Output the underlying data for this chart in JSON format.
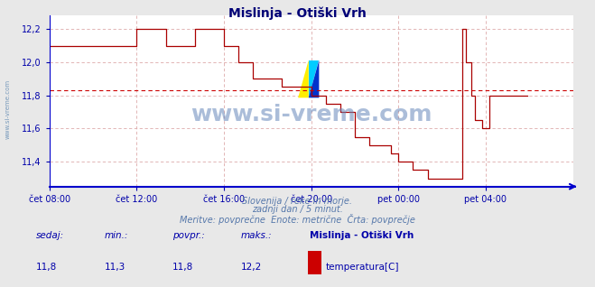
{
  "title": "Mislinja - Otiški Vrh",
  "bg_color": "#e8e8e8",
  "plot_bg_color": "#ffffff",
  "line_color": "#aa0000",
  "avg_line_color": "#cc0000",
  "grid_color": "#ddaaaa",
  "axis_color": "#0000cc",
  "title_color": "#000077",
  "label_color": "#0000aa",
  "watermark_color": "#5577aa",
  "ylim": [
    11.25,
    12.28
  ],
  "yticks": [
    11.4,
    11.6,
    11.8,
    12.0,
    12.2
  ],
  "ytick_labels": [
    "11,4",
    "11,6",
    "11,8",
    "12,0",
    "12,2"
  ],
  "avg_value": 11.833,
  "xtick_labels": [
    "čet 08:00",
    "čet 12:00",
    "čet 16:00",
    "čet 20:00",
    "pet 00:00",
    "pet 04:00"
  ],
  "xtick_positions": [
    0,
    48,
    96,
    144,
    192,
    240
  ],
  "n_points": 288,
  "subtitle1": "Slovenija / reke in morje.",
  "subtitle2": "zadnji dan / 5 minut.",
  "subtitle3": "Meritve: povprečne  Enote: metrične  Črta: povprečje",
  "legend_title": "Mislinja - Otiški Vrh",
  "legend_label": "temperatura[C]",
  "legend_color": "#cc0000",
  "stat_sedaj": "11,8",
  "stat_min": "11,3",
  "stat_povpr": "11,8",
  "stat_maks": "12,2",
  "watermark": "www.si-vreme.com",
  "sidebar_label": "www.si-vreme.com",
  "y_values": [
    12.1,
    12.1,
    12.1,
    12.1,
    12.1,
    12.1,
    12.1,
    12.1,
    12.1,
    12.1,
    12.1,
    12.1,
    12.1,
    12.1,
    12.1,
    12.1,
    12.1,
    12.1,
    12.1,
    12.1,
    12.1,
    12.1,
    12.1,
    12.1,
    12.1,
    12.1,
    12.1,
    12.1,
    12.1,
    12.1,
    12.1,
    12.1,
    12.1,
    12.1,
    12.1,
    12.1,
    12.1,
    12.1,
    12.1,
    12.1,
    12.1,
    12.1,
    12.1,
    12.1,
    12.1,
    12.1,
    12.1,
    12.1,
    12.2,
    12.2,
    12.2,
    12.2,
    12.2,
    12.2,
    12.2,
    12.2,
    12.2,
    12.2,
    12.2,
    12.2,
    12.2,
    12.2,
    12.2,
    12.2,
    12.1,
    12.1,
    12.1,
    12.1,
    12.1,
    12.1,
    12.1,
    12.1,
    12.1,
    12.1,
    12.1,
    12.1,
    12.1,
    12.1,
    12.1,
    12.1,
    12.2,
    12.2,
    12.2,
    12.2,
    12.2,
    12.2,
    12.2,
    12.2,
    12.2,
    12.2,
    12.2,
    12.2,
    12.2,
    12.2,
    12.2,
    12.2,
    12.1,
    12.1,
    12.1,
    12.1,
    12.1,
    12.1,
    12.1,
    12.1,
    12.0,
    12.0,
    12.0,
    12.0,
    12.0,
    12.0,
    12.0,
    12.0,
    11.9,
    11.9,
    11.9,
    11.9,
    11.9,
    11.9,
    11.9,
    11.9,
    11.9,
    11.9,
    11.9,
    11.9,
    11.9,
    11.9,
    11.9,
    11.9,
    11.85,
    11.85,
    11.85,
    11.85,
    11.85,
    11.85,
    11.85,
    11.85,
    11.85,
    11.85,
    11.85,
    11.85,
    11.85,
    11.85,
    11.85,
    11.85,
    11.8,
    11.8,
    11.8,
    11.8,
    11.8,
    11.8,
    11.8,
    11.8,
    11.75,
    11.75,
    11.75,
    11.75,
    11.75,
    11.75,
    11.75,
    11.75,
    11.7,
    11.7,
    11.7,
    11.7,
    11.7,
    11.7,
    11.7,
    11.7,
    11.55,
    11.55,
    11.55,
    11.55,
    11.55,
    11.55,
    11.55,
    11.55,
    11.5,
    11.5,
    11.5,
    11.5,
    11.5,
    11.5,
    11.5,
    11.5,
    11.5,
    11.5,
    11.5,
    11.5,
    11.45,
    11.45,
    11.45,
    11.45,
    11.4,
    11.4,
    11.4,
    11.4,
    11.4,
    11.4,
    11.4,
    11.4,
    11.35,
    11.35,
    11.35,
    11.35,
    11.35,
    11.35,
    11.35,
    11.35,
    11.3,
    11.3,
    11.3,
    11.3,
    11.3,
    11.3,
    11.3,
    11.3,
    11.3,
    11.3,
    11.3,
    11.3,
    11.3,
    11.3,
    11.3,
    11.3,
    11.3,
    11.3,
    11.3,
    12.2,
    12.2,
    12.0,
    12.0,
    12.0,
    11.8,
    11.8,
    11.65,
    11.65,
    11.65,
    11.65,
    11.6,
    11.6,
    11.6,
    11.6,
    11.8,
    11.8,
    11.8,
    11.8,
    11.8,
    11.8,
    11.8,
    11.8,
    11.8,
    11.8,
    11.8,
    11.8,
    11.8,
    11.8,
    11.8,
    11.8,
    11.8,
    11.8,
    11.8,
    11.8,
    11.8,
    11.8
  ]
}
